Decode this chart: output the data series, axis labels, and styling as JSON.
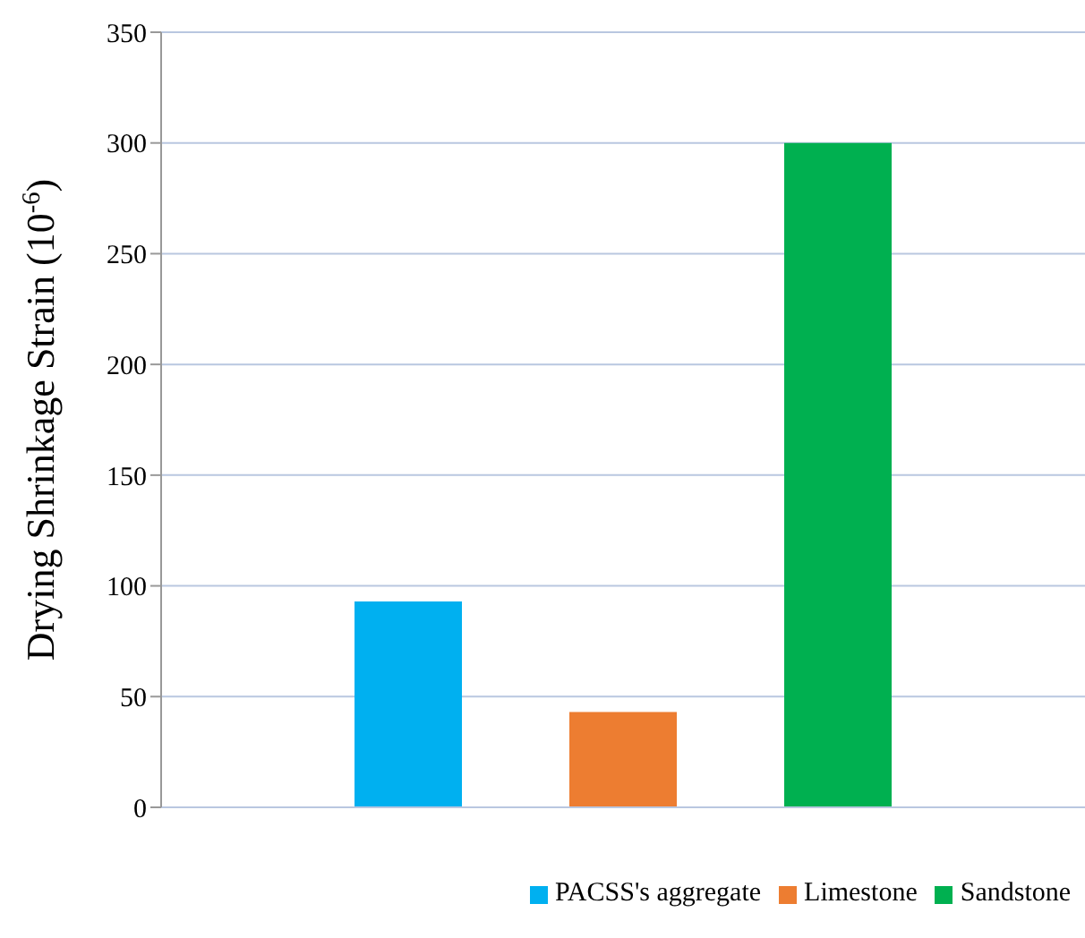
{
  "chart_data": {
    "type": "bar",
    "ylabel": "Drying Shrinkage Strain (10$^{-6}$)",
    "categories": [
      null
    ],
    "series": [
      {
        "name": "PACSS's aggregate",
        "color": "#00b0f0",
        "values": [
          93
        ]
      },
      {
        "name": "Limestone",
        "color": "#ed7d31",
        "values": [
          43
        ]
      },
      {
        "name": "Sandstone",
        "color": "#00b050",
        "values": [
          300
        ]
      }
    ],
    "ylim": [
      0,
      350
    ],
    "yticks": [
      0,
      50,
      100,
      150,
      200,
      250,
      300,
      350
    ],
    "grid": "y",
    "legend": "bottom"
  }
}
